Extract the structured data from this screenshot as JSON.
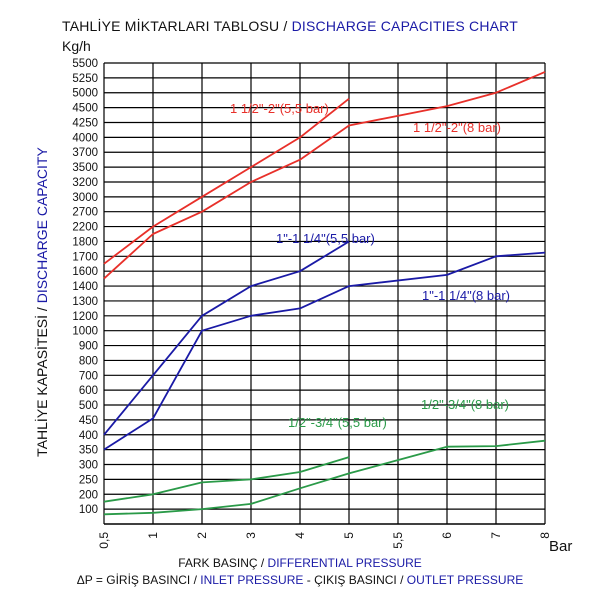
{
  "header": {
    "title_tr": "TAHLİYE MİKTARLARI TABLOSU / ",
    "title_en": "DISCHARGE CAPACITIES CHART",
    "y_unit": "Kg/h",
    "x_unit": "Bar"
  },
  "axis_text": {
    "xlabel_tr": "FARK BASINÇ / ",
    "xlabel_en": "DIFFERENTIAL PRESSURE",
    "ylabel_tr": "TAHLİYE KAPASİTESİ / ",
    "ylabel_en": "DISCHARGE CAPACITY",
    "footnote": {
      "p1": "ΔP =  GİRİŞ BASINCI / ",
      "p2": "INLET PRESSURE",
      "p3": " - ÇIKIŞ BASINCI / ",
      "p4": "OUTLET PRESSURE"
    }
  },
  "chart_data": {
    "type": "line",
    "x_ticks": [
      "0,5",
      "1",
      "2",
      "3",
      "4",
      "5",
      "5,5",
      "6",
      "7",
      "8"
    ],
    "y_ticks": [
      "100",
      "200",
      "250",
      "300",
      "350",
      "400",
      "450",
      "500",
      "600",
      "700",
      "800",
      "900",
      "1000",
      "1200",
      "1300",
      "1400",
      "1600",
      "1700",
      "1800",
      "2200",
      "2700",
      "3000",
      "3200",
      "3500",
      "3700",
      "4000",
      "4250",
      "4500",
      "5000",
      "5250",
      "5500"
    ],
    "grid": true,
    "colors": {
      "red": "#e8302a",
      "blue": "#1a1aa6",
      "green": "#2a9a48",
      "grid": "#000000"
    },
    "series": [
      {
        "name": "1 1/2\"-2\"(5,5 bar)",
        "color": "red",
        "x": [
          "0,5",
          "1",
          "2",
          "3",
          "4",
          "5"
        ],
        "y": [
          1650,
          2200,
          3000,
          3500,
          4000,
          4800
        ]
      },
      {
        "name": "1 1/2\"-2\"(8 bar)",
        "color": "red",
        "x": [
          "0,5",
          "1",
          "2",
          "3",
          "4",
          "5",
          "6",
          "7",
          "8"
        ],
        "y": [
          1500,
          2000,
          2700,
          3200,
          3600,
          4200,
          4550,
          5000,
          5350
        ]
      },
      {
        "name": "1\"-1 1/4\"(5,5 bar)",
        "color": "blue",
        "x": [
          "0,5",
          "1",
          "2",
          "3",
          "4",
          "5"
        ],
        "y": [
          400,
          700,
          1200,
          1400,
          1600,
          1800
        ]
      },
      {
        "name": "1\"-1 1/4\"(8 bar)",
        "color": "blue",
        "x": [
          "0,5",
          "1",
          "2",
          "3",
          "4",
          "5",
          "6",
          "7",
          "8"
        ],
        "y": [
          350,
          455,
          1000,
          1200,
          1250,
          1400,
          1550,
          1700,
          1725
        ]
      },
      {
        "name": "1/2\"-3/4\"(5,5 bar)",
        "color": "green",
        "x": [
          "0,5",
          "1",
          "2",
          "3",
          "4",
          "5"
        ],
        "y": [
          150,
          200,
          240,
          250,
          275,
          325
        ]
      },
      {
        "name": "1/2\"-3/4\"(8 bar)",
        "color": "green",
        "x": [
          "0,5",
          "1",
          "2",
          "3",
          "4",
          "5",
          "6",
          "7",
          "8"
        ],
        "y": [
          65,
          75,
          100,
          135,
          220,
          270,
          360,
          362,
          380
        ]
      }
    ]
  }
}
